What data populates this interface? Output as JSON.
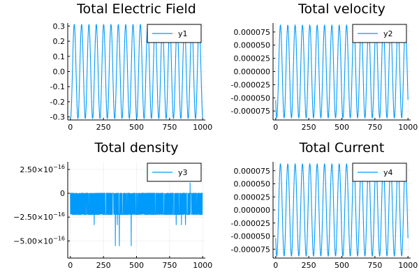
{
  "colors": {
    "series": "#009AFA",
    "axis": "#000000",
    "grid": "#E6E6E6",
    "background": "#FFFFFF"
  },
  "chart_data": [
    {
      "type": "line",
      "title": "Total Electric Field",
      "xlabel": "",
      "ylabel": "",
      "xlim": [
        -20,
        1020
      ],
      "ylim": [
        -0.32,
        0.32
      ],
      "xticks": [
        0,
        250,
        500,
        750,
        1000
      ],
      "xtick_labels": [
        "0",
        "250",
        "500",
        "750",
        "1000"
      ],
      "yticks": [
        0.3,
        0.2,
        0.1,
        0.0,
        -0.1,
        -0.2,
        -0.3
      ],
      "ytick_labels": [
        "0.3",
        "0.2",
        "0.1",
        "0.0",
        "-0.1",
        "-0.2",
        "-0.3"
      ],
      "grid": true,
      "legend": "top-right",
      "series": [
        {
          "name": "y1",
          "kind": "sine",
          "amplitude": 0.31,
          "cycles": 18,
          "phase": 4.55,
          "x_start": 0,
          "x_end": 1000
        }
      ]
    },
    {
      "type": "line",
      "title": "Total velocity",
      "xlabel": "",
      "ylabel": "",
      "xlim": [
        -20,
        1020
      ],
      "ylim": [
        -9.2e-05,
        9.2e-05
      ],
      "xticks": [
        0,
        250,
        500,
        750,
        1000
      ],
      "xtick_labels": [
        "0",
        "250",
        "500",
        "750",
        "1000"
      ],
      "yticks": [
        7.5e-05,
        5e-05,
        2.5e-05,
        0.0,
        -2.5e-05,
        -5e-05,
        -7.5e-05
      ],
      "ytick_labels": [
        "0.000075",
        "0.000050",
        "0.000025",
        "0.000000",
        "-0.000025",
        "-0.000050",
        "-0.000075"
      ],
      "grid": true,
      "legend": "top-right",
      "series": [
        {
          "name": "y2",
          "kind": "sine",
          "amplitude": 8.8e-05,
          "cycles": 18,
          "phase": 3.8,
          "x_start": 0,
          "x_end": 1000
        }
      ]
    },
    {
      "type": "line",
      "title": "Total density",
      "xlabel": "",
      "ylabel": "",
      "xlim": [
        -20,
        1020
      ],
      "ylim": [
        -6.8e-16,
        3.3e-16
      ],
      "xticks": [
        0,
        250,
        500,
        750,
        1000
      ],
      "xtick_labels": [
        "0",
        "250",
        "500",
        "750",
        "1000"
      ],
      "yticks": [
        2.5e-16,
        0,
        -2.5e-16,
        -5e-16
      ],
      "ytick_labels": [
        {
          "mantissa": "2.50×10",
          "exponent": "−16"
        },
        {
          "mantissa": "0",
          "exponent": ""
        },
        {
          "mantissa": "−2.50×10",
          "exponent": "−16"
        },
        {
          "mantissa": "−5.00×10",
          "exponent": "−16"
        }
      ],
      "grid": true,
      "legend": "top-right",
      "series": [
        {
          "name": "y3",
          "kind": "noise",
          "x_start": 0,
          "x_end": 1000,
          "levels": [
            0,
            -2.22e-16
          ],
          "spikes": [
            {
              "x": 180,
              "y": -3.33e-16
            },
            {
              "x": 340,
              "y": -5.55e-16
            },
            {
              "x": 355,
              "y": -3.33e-16
            },
            {
              "x": 370,
              "y": -5.55e-16
            },
            {
              "x": 460,
              "y": -5.55e-16
            },
            {
              "x": 800,
              "y": -3.33e-16
            },
            {
              "x": 840,
              "y": -3.33e-16
            },
            {
              "x": 870,
              "y": -3.33e-16
            }
          ],
          "up_spikes": [
            {
              "x": 905,
              "y": 1.11e-16
            }
          ]
        }
      ]
    },
    {
      "type": "line",
      "title": "Total Current",
      "xlabel": "",
      "ylabel": "",
      "xlim": [
        -20,
        1020
      ],
      "ylim": [
        -9.2e-05,
        9.2e-05
      ],
      "xticks": [
        0,
        250,
        500,
        750,
        1000
      ],
      "xtick_labels": [
        "0",
        "250",
        "500",
        "750",
        "1000"
      ],
      "yticks": [
        7.5e-05,
        5e-05,
        2.5e-05,
        0.0,
        -2.5e-05,
        -5e-05,
        -7.5e-05
      ],
      "ytick_labels": [
        "0.000075",
        "0.000050",
        "0.000025",
        "0.000000",
        "-0.000025",
        "-0.000050",
        "-0.000075"
      ],
      "grid": true,
      "legend": "top-right",
      "series": [
        {
          "name": "y4",
          "kind": "sine",
          "amplitude": 8.8e-05,
          "cycles": 18,
          "phase": 3.8,
          "x_start": 0,
          "x_end": 1000
        }
      ]
    }
  ]
}
